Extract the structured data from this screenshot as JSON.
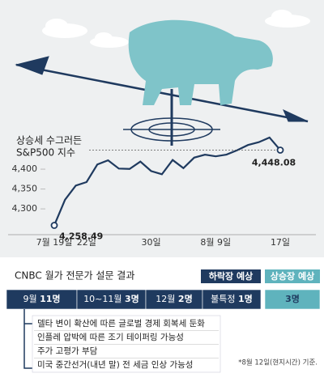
{
  "chart_data": {
    "type": "line",
    "title": [
      "상승세 수그러든",
      "S&P500 지수"
    ],
    "categories": [
      "7월 19일",
      null,
      null,
      "22일",
      null,
      null,
      null,
      null,
      null,
      "30일",
      null,
      null,
      null,
      null,
      null,
      "8월 9일",
      null,
      null,
      null,
      null,
      null,
      "17일"
    ],
    "values": [
      4258.49,
      4323.06,
      4358.69,
      4367.48,
      4411.79,
      4422.3,
      4401.46,
      4400.64,
      4419.15,
      4395.26,
      4387.16,
      4423.15,
      4402.66,
      4429.1,
      4436.52,
      4432.35,
      4436.75,
      4447.7,
      4460.83,
      4468.0,
      4479.71,
      4448.08
    ],
    "value_labels": [
      "4,258.49",
      null,
      null,
      null,
      null,
      null,
      null,
      null,
      null,
      null,
      null,
      null,
      null,
      null,
      null,
      null,
      null,
      null,
      null,
      null,
      null,
      "4,448.08"
    ],
    "color": "#1f3a5f",
    "ylim": [
      4235,
      4500
    ],
    "yticks": [
      {
        "value": 4300,
        "label": "4,300"
      },
      {
        "value": 4350,
        "label": "4,350"
      },
      {
        "value": 4400,
        "label": "4,400"
      }
    ]
  },
  "survey": {
    "title": "CNBC 월가 전문가 설문 결과",
    "groups": [
      {
        "name": "하락장 예상",
        "color": "#1f3a5f"
      },
      {
        "name": "상승장 예상",
        "color": "#5fb3bd"
      }
    ],
    "segments": [
      {
        "name": "9월",
        "count": "11명",
        "group": 0
      },
      {
        "name": "10~11월",
        "count": "3명",
        "group": 0
      },
      {
        "name": "12월",
        "count": "2명",
        "group": 0
      },
      {
        "name": "불특정",
        "count": "1명",
        "group": 0
      },
      {
        "count": "3명",
        "group": 1
      }
    ],
    "reasons": [
      "델타 변이 확산에 따른 글로벌 경제 회복세 둔화",
      "인플레 압박에 따른 조기 테이퍼링 가능성",
      "주가 고평가 부담",
      "미국 중간선거(내년 말) 전 세금 인상 가능성"
    ],
    "footnote": "*8월 12일(현지시간) 기준."
  }
}
